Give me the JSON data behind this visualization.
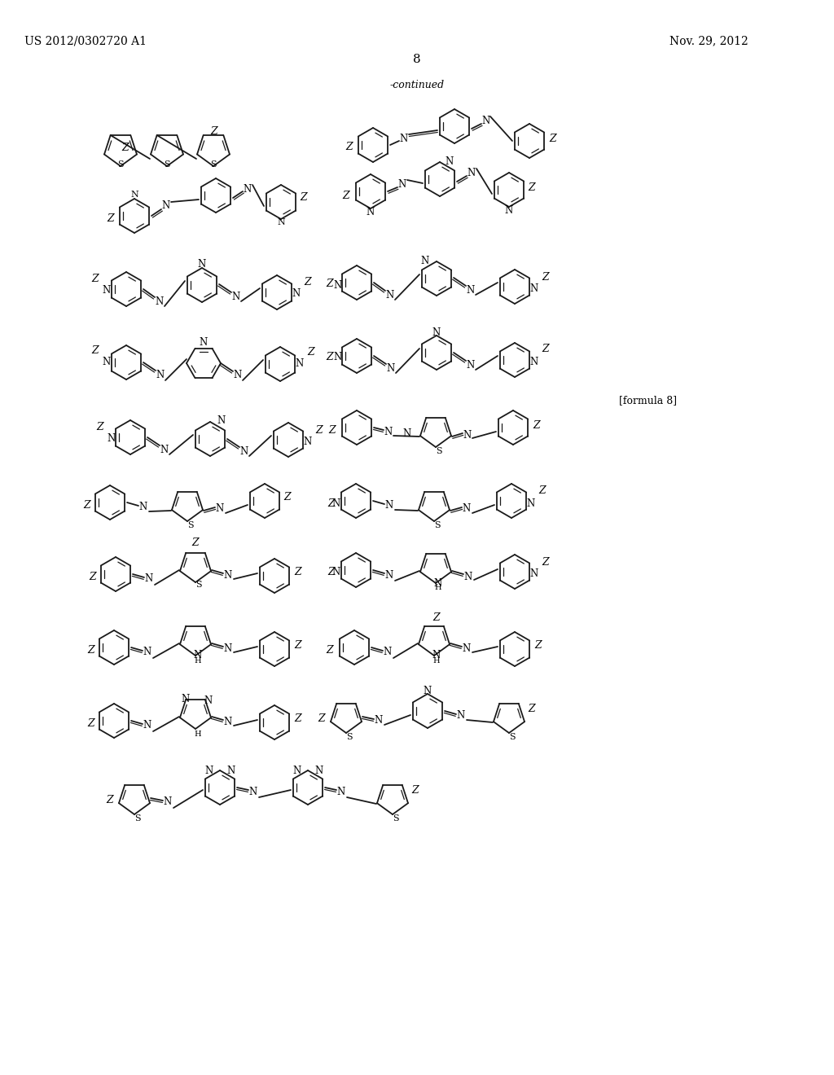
{
  "page_header_left": "US 2012/0302720 A1",
  "page_header_right": "Nov. 29, 2012",
  "page_number": "8",
  "continued_label": "-continued",
  "formula_label": "[formula 8]",
  "background_color": "#ffffff",
  "text_color": "#000000",
  "figure_color": "#1a1a1a"
}
